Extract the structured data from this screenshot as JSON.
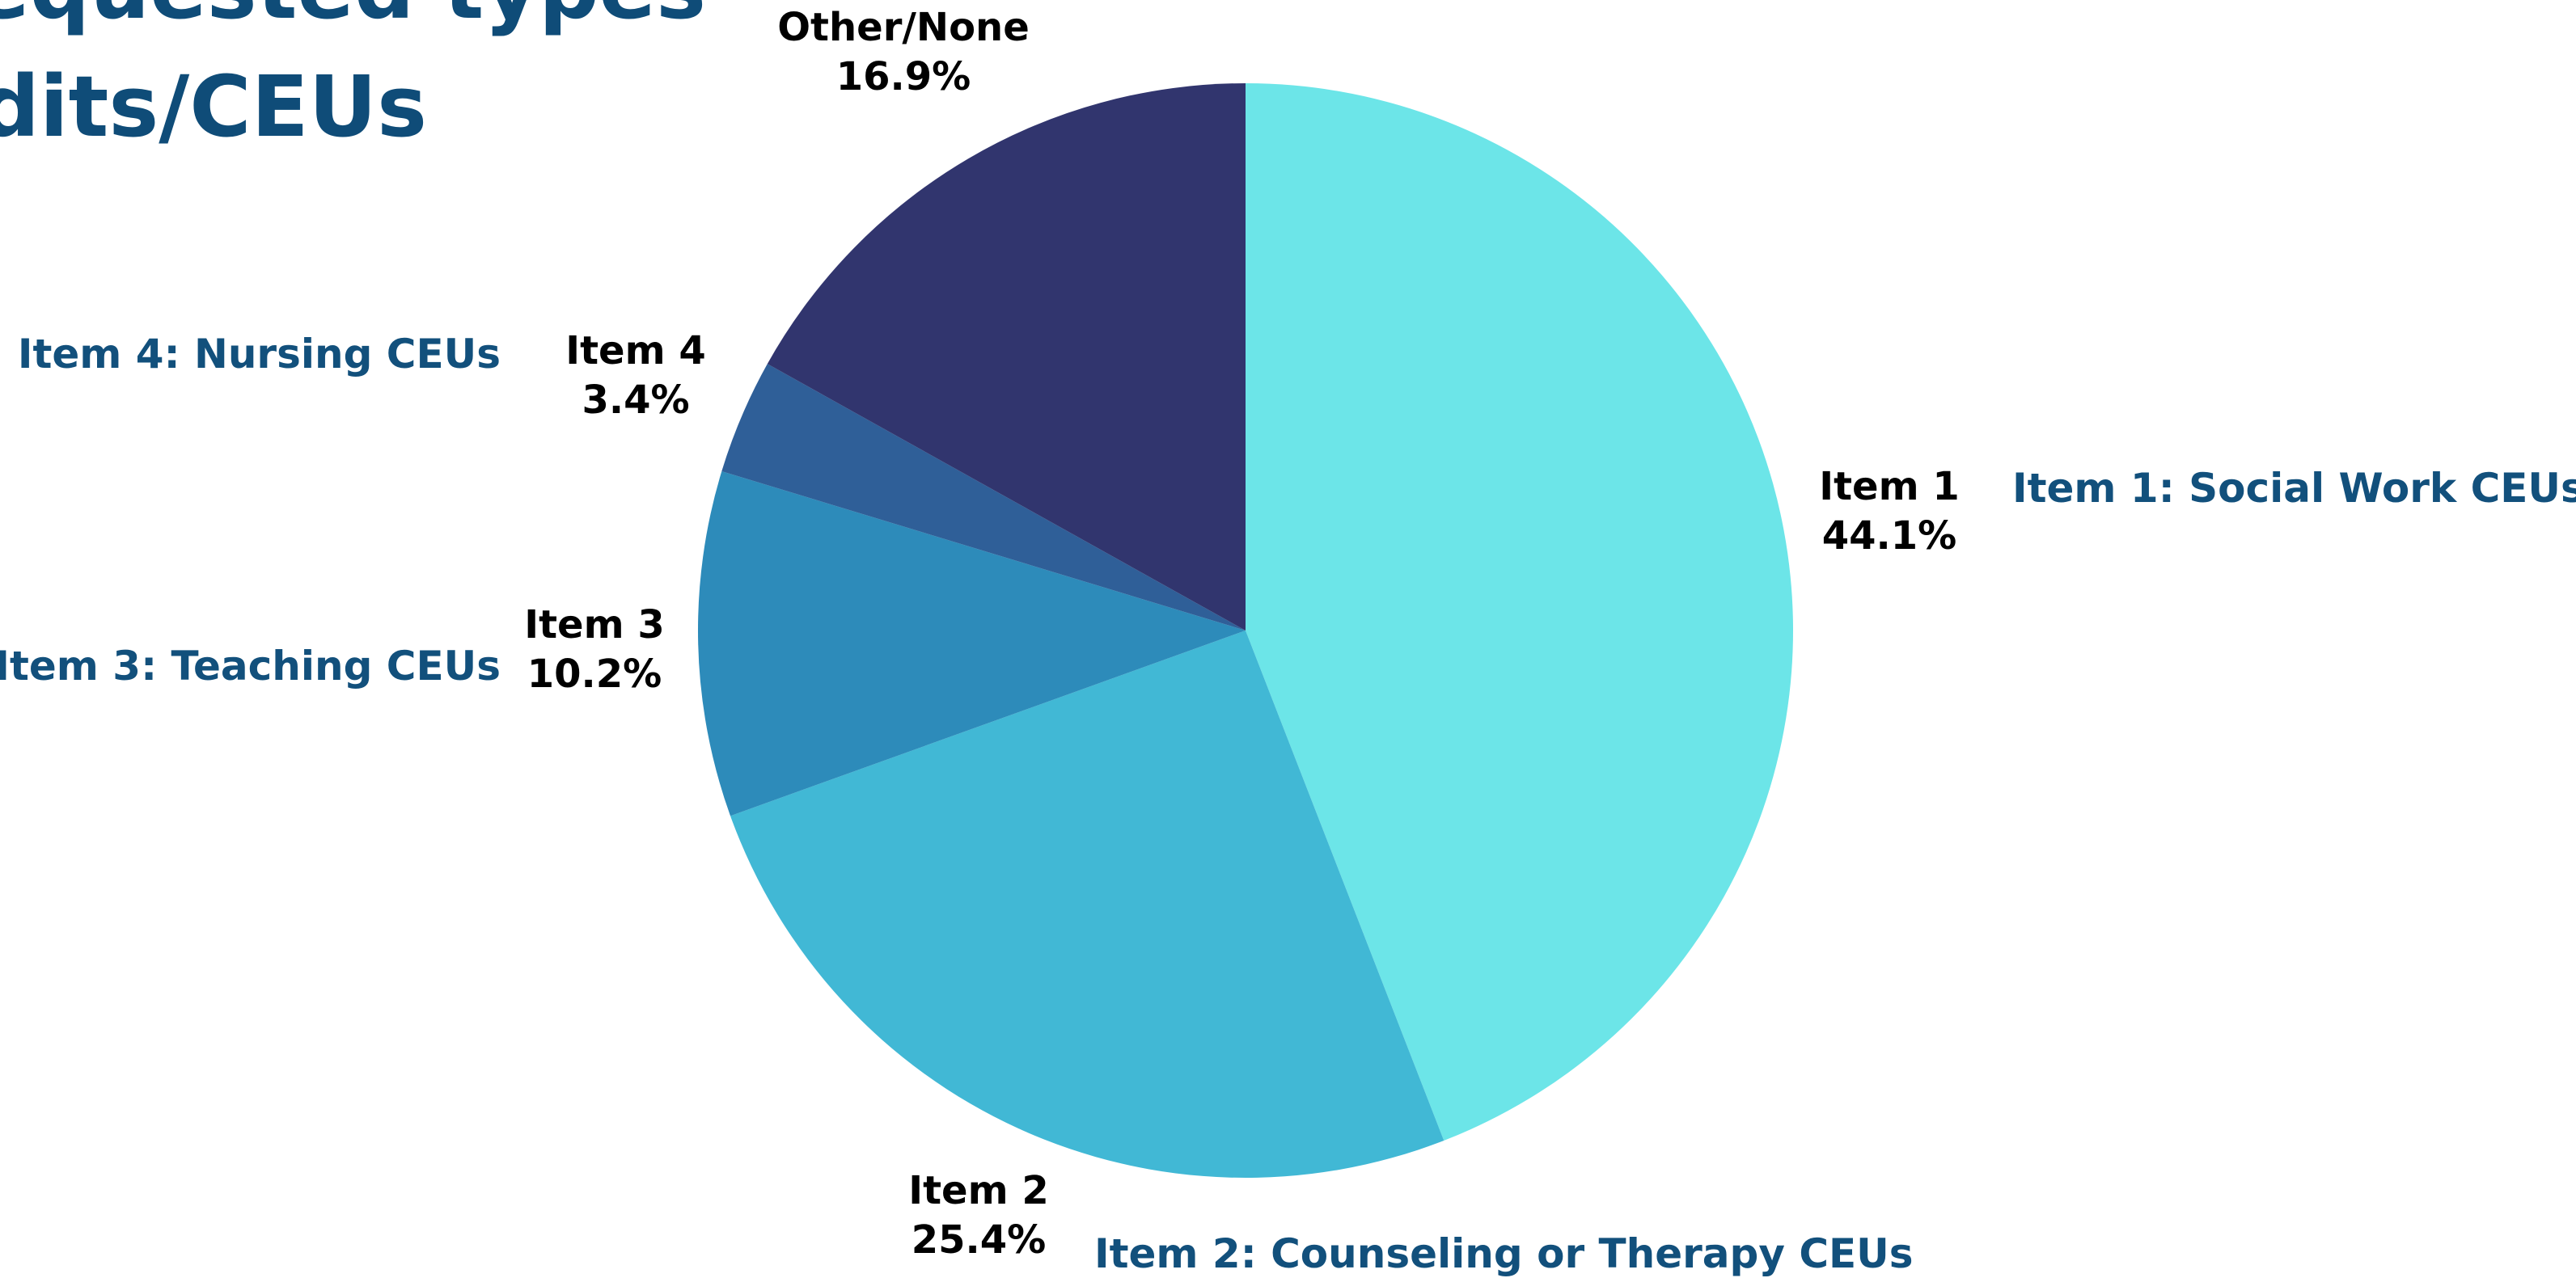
{
  "chart_data": {
    "type": "pie",
    "title": [
      "Requested types",
      "Credits/CEUs"
    ],
    "categories": [
      "Item 1",
      "Item 2",
      "Item 3",
      "Item 4",
      "Other/None"
    ],
    "values": [
      44.1,
      25.4,
      10.2,
      3.4,
      16.9
    ],
    "value_labels": [
      "44.1%",
      "25.4%",
      "10.2%",
      "3.4%",
      "16.9%"
    ],
    "descriptions": [
      "Item 1: Social Work CEUs",
      "Item 2: Counseling or Therapy CEUs",
      "Item 3: Teaching CEUs",
      "Item 4: Nursing CEUs",
      null
    ],
    "colors": [
      "#6ce5e8",
      "#41b8d5",
      "#2d8bba",
      "#2f5f98",
      "#31356e"
    ]
  }
}
